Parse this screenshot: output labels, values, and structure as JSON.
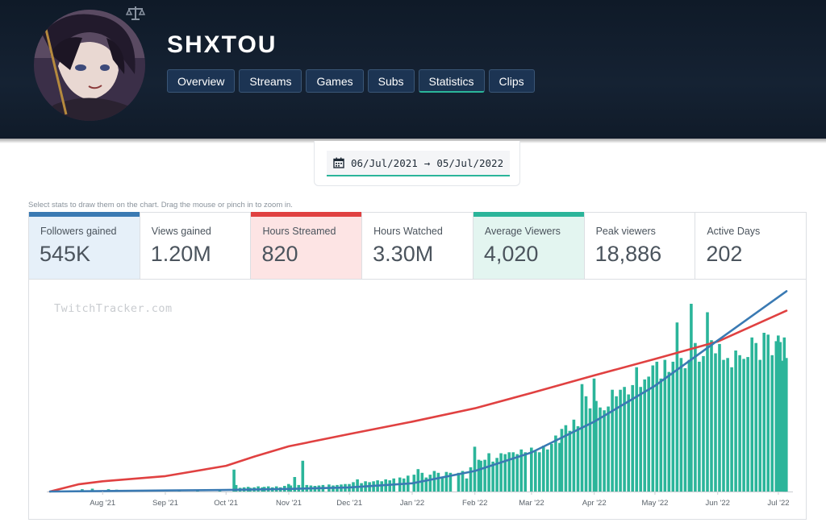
{
  "channel": {
    "name": "SHXTOU"
  },
  "tabs": [
    {
      "label": "Overview"
    },
    {
      "label": "Streams"
    },
    {
      "label": "Games"
    },
    {
      "label": "Subs"
    },
    {
      "label": "Statistics"
    },
    {
      "label": "Clips"
    }
  ],
  "active_tab": "Statistics",
  "date_range": {
    "start": "06/Jul/2021",
    "arrow": "→",
    "end": "05/Jul/2022"
  },
  "hint": "Select stats to draw them on the chart. Drag the mouse or pinch in to zoom in.",
  "stats": [
    {
      "label": "Followers gained",
      "value": "545K",
      "selected": true,
      "color": "#3a7ab3"
    },
    {
      "label": "Views gained",
      "value": "1.20M",
      "selected": false
    },
    {
      "label": "Hours Streamed",
      "value": "820",
      "selected": true,
      "color": "#e04141"
    },
    {
      "label": "Hours Watched",
      "value": "3.30M",
      "selected": false
    },
    {
      "label": "Average Viewers",
      "value": "4,020",
      "selected": true,
      "color": "#2bb59a"
    },
    {
      "label": "Peak viewers",
      "value": "18,886",
      "selected": false
    },
    {
      "label": "Active Days",
      "value": "202",
      "selected": false
    }
  ],
  "watermark": "TwitchTracker.com",
  "colors": {
    "header_bg": "#132033",
    "tab_bg": "#1c3453",
    "accent": "#2bb59a",
    "followers": "#3a7ab3",
    "hours": "#e04141",
    "viewers": "#2bb59a"
  },
  "chart_data": {
    "type": "bar",
    "x_start": "2021-07-06",
    "x_end": "2022-07-05",
    "x_ticks": [
      "Aug '21",
      "Sep '21",
      "Oct '21",
      "Nov '21",
      "Dec '21",
      "Jan '22",
      "Feb '22",
      "Mar '22",
      "Apr '22",
      "May '22",
      "Jun '22",
      "Jul '22"
    ],
    "grid": false,
    "legend": "none",
    "series": [
      {
        "name": "Average Viewers",
        "type": "bar",
        "color": "#2bb59a",
        "points": [
          [
            "2021-07-22",
            250
          ],
          [
            "2021-07-27",
            300
          ],
          [
            "2021-08-04",
            250
          ],
          [
            "2021-08-08",
            200
          ],
          [
            "2021-08-16",
            150
          ],
          [
            "2021-08-24",
            150
          ],
          [
            "2021-09-01",
            150
          ],
          [
            "2021-09-08",
            200
          ],
          [
            "2021-09-17",
            200
          ],
          [
            "2021-09-28",
            200
          ],
          [
            "2021-10-05",
            2350
          ],
          [
            "2021-10-06",
            700
          ],
          [
            "2021-10-08",
            400
          ],
          [
            "2021-10-10",
            450
          ],
          [
            "2021-10-12",
            500
          ],
          [
            "2021-10-13",
            400
          ],
          [
            "2021-10-15",
            450
          ],
          [
            "2021-10-17",
            550
          ],
          [
            "2021-10-19",
            450
          ],
          [
            "2021-10-20",
            500
          ],
          [
            "2021-10-22",
            550
          ],
          [
            "2021-10-24",
            450
          ],
          [
            "2021-10-26",
            550
          ],
          [
            "2021-10-28",
            450
          ],
          [
            "2021-10-30",
            600
          ],
          [
            "2021-11-01",
            800
          ],
          [
            "2021-11-02",
            650
          ],
          [
            "2021-11-04",
            1550
          ],
          [
            "2021-11-06",
            700
          ],
          [
            "2021-11-08",
            3300
          ],
          [
            "2021-11-10",
            700
          ],
          [
            "2021-11-12",
            650
          ],
          [
            "2021-11-14",
            600
          ],
          [
            "2021-11-16",
            650
          ],
          [
            "2021-11-18",
            700
          ],
          [
            "2021-11-21",
            750
          ],
          [
            "2021-11-23",
            650
          ],
          [
            "2021-11-25",
            700
          ],
          [
            "2021-11-27",
            750
          ],
          [
            "2021-11-29",
            800
          ],
          [
            "2021-12-01",
            800
          ],
          [
            "2021-12-03",
            1000
          ],
          [
            "2021-12-05",
            1300
          ],
          [
            "2021-12-07",
            900
          ],
          [
            "2021-12-09",
            1100
          ],
          [
            "2021-12-11",
            1000
          ],
          [
            "2021-12-13",
            1100
          ],
          [
            "2021-12-15",
            1200
          ],
          [
            "2021-12-17",
            1100
          ],
          [
            "2021-12-19",
            1300
          ],
          [
            "2021-12-21",
            1200
          ],
          [
            "2021-12-23",
            1400
          ],
          [
            "2021-12-26",
            1500
          ],
          [
            "2021-12-28",
            1400
          ],
          [
            "2021-12-30",
            1700
          ],
          [
            "2022-01-02",
            1800
          ],
          [
            "2022-01-04",
            2400
          ],
          [
            "2022-01-06",
            2000
          ],
          [
            "2022-01-08",
            1500
          ],
          [
            "2022-01-10",
            1800
          ],
          [
            "2022-01-12",
            2200
          ],
          [
            "2022-01-14",
            2000
          ],
          [
            "2022-01-16",
            1500
          ],
          [
            "2022-01-18",
            2100
          ],
          [
            "2022-01-20",
            2000
          ],
          [
            "2022-01-24",
            2000
          ],
          [
            "2022-01-26",
            2200
          ],
          [
            "2022-01-28",
            1400
          ],
          [
            "2022-01-30",
            2600
          ],
          [
            "2022-02-01",
            4800
          ],
          [
            "2022-02-03",
            3400
          ],
          [
            "2022-02-04",
            3300
          ],
          [
            "2022-02-06",
            3400
          ],
          [
            "2022-02-08",
            4100
          ],
          [
            "2022-02-10",
            3200
          ],
          [
            "2022-02-12",
            3600
          ],
          [
            "2022-02-14",
            4100
          ],
          [
            "2022-02-16",
            4000
          ],
          [
            "2022-02-18",
            4200
          ],
          [
            "2022-02-20",
            4200
          ],
          [
            "2022-02-22",
            4000
          ],
          [
            "2022-02-24",
            4500
          ],
          [
            "2022-02-26",
            4200
          ],
          [
            "2022-03-01",
            4700
          ],
          [
            "2022-03-03",
            4300
          ],
          [
            "2022-03-05",
            4200
          ],
          [
            "2022-03-07",
            4900
          ],
          [
            "2022-03-09",
            4500
          ],
          [
            "2022-03-11",
            5100
          ],
          [
            "2022-03-13",
            6000
          ],
          [
            "2022-03-15",
            5200
          ],
          [
            "2022-03-16",
            6700
          ],
          [
            "2022-03-18",
            7100
          ],
          [
            "2022-03-20",
            6500
          ],
          [
            "2022-03-22",
            7700
          ],
          [
            "2022-03-24",
            7000
          ],
          [
            "2022-03-26",
            11500
          ],
          [
            "2022-03-28",
            10200
          ],
          [
            "2022-03-30",
            8900
          ],
          [
            "2022-04-01",
            12100
          ],
          [
            "2022-04-02",
            9700
          ],
          [
            "2022-04-04",
            9000
          ],
          [
            "2022-04-06",
            8700
          ],
          [
            "2022-04-08",
            9100
          ],
          [
            "2022-04-10",
            10900
          ],
          [
            "2022-04-12",
            10200
          ],
          [
            "2022-04-14",
            10900
          ],
          [
            "2022-04-16",
            11200
          ],
          [
            "2022-04-18",
            10400
          ],
          [
            "2022-04-20",
            11400
          ],
          [
            "2022-04-22",
            13300
          ],
          [
            "2022-04-24",
            11200
          ],
          [
            "2022-04-26",
            12000
          ],
          [
            "2022-04-28",
            12300
          ],
          [
            "2022-04-30",
            13500
          ],
          [
            "2022-05-02",
            13900
          ],
          [
            "2022-05-04",
            12100
          ],
          [
            "2022-05-06",
            14100
          ],
          [
            "2022-05-08",
            12800
          ],
          [
            "2022-05-10",
            13900
          ],
          [
            "2022-05-12",
            18100
          ],
          [
            "2022-05-14",
            14300
          ],
          [
            "2022-05-16",
            13200
          ],
          [
            "2022-05-18",
            14100
          ],
          [
            "2022-05-19",
            20100
          ],
          [
            "2022-05-21",
            15900
          ],
          [
            "2022-05-23",
            13900
          ],
          [
            "2022-05-25",
            14500
          ],
          [
            "2022-05-27",
            19200
          ],
          [
            "2022-05-29",
            16200
          ],
          [
            "2022-05-31",
            14800
          ],
          [
            "2022-06-02",
            15800
          ],
          [
            "2022-06-04",
            14100
          ],
          [
            "2022-06-06",
            14300
          ],
          [
            "2022-06-08",
            13300
          ],
          [
            "2022-06-10",
            15100
          ],
          [
            "2022-06-12",
            14600
          ],
          [
            "2022-06-14",
            14200
          ],
          [
            "2022-06-16",
            14400
          ],
          [
            "2022-06-18",
            16500
          ],
          [
            "2022-06-20",
            15900
          ],
          [
            "2022-06-22",
            14100
          ],
          [
            "2022-06-24",
            17000
          ],
          [
            "2022-06-26",
            16800
          ],
          [
            "2022-06-28",
            14600
          ],
          [
            "2022-06-30",
            16100
          ],
          [
            "2022-07-01",
            16700
          ],
          [
            "2022-07-02",
            16000
          ],
          [
            "2022-07-03",
            14000
          ],
          [
            "2022-07-04",
            16500
          ],
          [
            "2022-07-05",
            14300
          ]
        ]
      },
      {
        "name": "Hours Streamed",
        "type": "line",
        "color": "#e04141",
        "points": [
          [
            "2021-07-06",
            0
          ],
          [
            "2021-07-20",
            700
          ],
          [
            "2021-08-01",
            1000
          ],
          [
            "2021-09-01",
            1500
          ],
          [
            "2021-10-01",
            2500
          ],
          [
            "2021-10-15",
            3400
          ],
          [
            "2021-11-01",
            4400
          ],
          [
            "2021-12-01",
            5600
          ],
          [
            "2022-01-01",
            6800
          ],
          [
            "2022-02-01",
            8100
          ],
          [
            "2022-03-01",
            9600
          ],
          [
            "2022-04-01",
            11300
          ],
          [
            "2022-05-01",
            12900
          ],
          [
            "2022-06-01",
            14600
          ],
          [
            "2022-07-05",
            17600
          ]
        ]
      },
      {
        "name": "Followers gained",
        "type": "line",
        "color": "#3a7ab3",
        "points": [
          [
            "2021-07-06",
            0
          ],
          [
            "2021-08-01",
            50
          ],
          [
            "2021-09-01",
            100
          ],
          [
            "2021-10-01",
            150
          ],
          [
            "2021-11-01",
            250
          ],
          [
            "2021-12-01",
            400
          ],
          [
            "2022-01-01",
            800
          ],
          [
            "2022-02-01",
            2000
          ],
          [
            "2022-03-01",
            3800
          ],
          [
            "2022-04-01",
            6800
          ],
          [
            "2022-05-01",
            10300
          ],
          [
            "2022-06-01",
            14700
          ],
          [
            "2022-07-05",
            19500
          ]
        ]
      }
    ]
  }
}
